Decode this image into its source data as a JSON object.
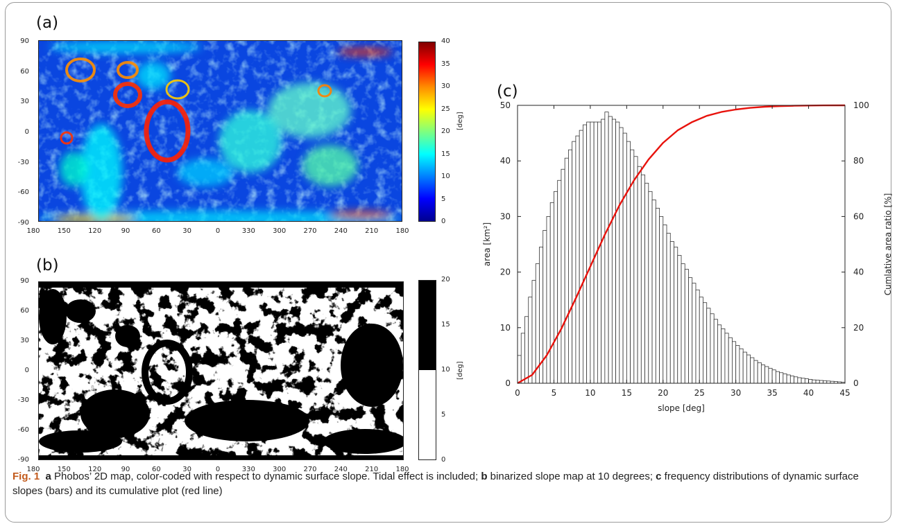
{
  "panels": {
    "a": {
      "label": "(a)",
      "y_ticks": [
        "90",
        "60",
        "30",
        "0",
        "-30",
        "-60",
        "-90"
      ],
      "x_ticks": [
        "180",
        "150",
        "120",
        "90",
        "60",
        "30",
        "0",
        "330",
        "300",
        "270",
        "240",
        "210",
        "180"
      ],
      "colorbar_ticks": [
        "40",
        "35",
        "30",
        "25",
        "20",
        "15",
        "10",
        "5",
        "0"
      ],
      "colorbar_unit": "[deg]",
      "colormap": [
        "#800000",
        "#ff0000",
        "#ff8c00",
        "#ffff00",
        "#7fff7f",
        "#00ffff",
        "#0080ff",
        "#0000ff",
        "#00008f"
      ]
    },
    "b": {
      "label": "(b)",
      "y_ticks": [
        "90",
        "60",
        "30",
        "0",
        "-30",
        "-60",
        "-90"
      ],
      "x_ticks": [
        "180",
        "150",
        "120",
        "90",
        "60",
        "30",
        "0",
        "330",
        "300",
        "270",
        "240",
        "210",
        "180"
      ],
      "colorbar_ticks": [
        "20",
        "15",
        "10",
        "5",
        "0"
      ],
      "colorbar_unit": "[deg]",
      "threshold": 10
    },
    "c": {
      "label": "(c)"
    }
  },
  "chart_data": {
    "type": "bar",
    "xlabel": "slope [deg]",
    "ylabel": "area [km²]",
    "y2label": "Cumlative area ratio [%]",
    "xlim": [
      0,
      45
    ],
    "ylim": [
      0,
      50
    ],
    "y2lim": [
      0,
      100
    ],
    "x_ticks": [
      "0",
      "5",
      "10",
      "15",
      "20",
      "25",
      "30",
      "35",
      "40",
      "45"
    ],
    "y_ticks": [
      "0",
      "10",
      "20",
      "30",
      "40",
      "50"
    ],
    "y2_ticks": [
      "0",
      "20",
      "40",
      "60",
      "80",
      "100"
    ],
    "bin_width": 0.5,
    "bins_start": 0,
    "values": [
      5,
      9,
      12,
      15.5,
      18.5,
      21.5,
      24.5,
      27.5,
      30,
      32.5,
      34.5,
      36.5,
      38.5,
      40.5,
      42,
      43.5,
      44.5,
      45.5,
      46.5,
      47,
      47,
      47,
      47,
      47.5,
      48.8,
      48,
      47.5,
      47,
      46,
      45,
      43.5,
      42,
      40.8,
      39,
      37.5,
      36,
      34.5,
      33,
      31.5,
      30,
      28.5,
      27,
      25.5,
      24.5,
      23,
      21.5,
      20.5,
      19,
      18,
      16.8,
      15.5,
      14.5,
      13.5,
      12.5,
      11.5,
      10.5,
      9.8,
      9,
      8.2,
      7.5,
      6.8,
      6.2,
      5.6,
      5.1,
      4.6,
      4.1,
      3.7,
      3.3,
      3,
      2.7,
      2.4,
      2.1,
      1.9,
      1.7,
      1.5,
      1.3,
      1.15,
      1,
      0.9,
      0.8,
      0.7,
      0.6,
      0.55,
      0.5,
      0.45,
      0.4,
      0.35,
      0.3,
      0.25,
      0.2
    ],
    "cumulative": {
      "name": "cumulative",
      "color": "#e8120c",
      "x": [
        0,
        2,
        4,
        6,
        8,
        10,
        12,
        14,
        16,
        18,
        20,
        22,
        24,
        26,
        28,
        30,
        32,
        34,
        36,
        38,
        40,
        42,
        45
      ],
      "y": [
        0,
        3,
        10,
        19.5,
        30.5,
        42,
        53.5,
        64,
        73,
        80.5,
        86.5,
        91,
        94,
        96.2,
        97.6,
        98.5,
        99.1,
        99.5,
        99.7,
        99.85,
        99.92,
        99.97,
        100
      ]
    },
    "bar_fill": "#ffffff",
    "bar_stroke": "#333333"
  },
  "caption": {
    "fig": "Fig. 1",
    "a_letter": "a",
    "a_text": " Phobos’ 2D map, color-coded with respect to dynamic surface slope. Tidal effect is included; ",
    "b_letter": "b",
    "b_text": " binarized slope map at 10 degrees; ",
    "c_letter": "c",
    "c_text": " frequency distributions of dynamic surface slopes (bars) and its cumulative plot (red line)"
  }
}
